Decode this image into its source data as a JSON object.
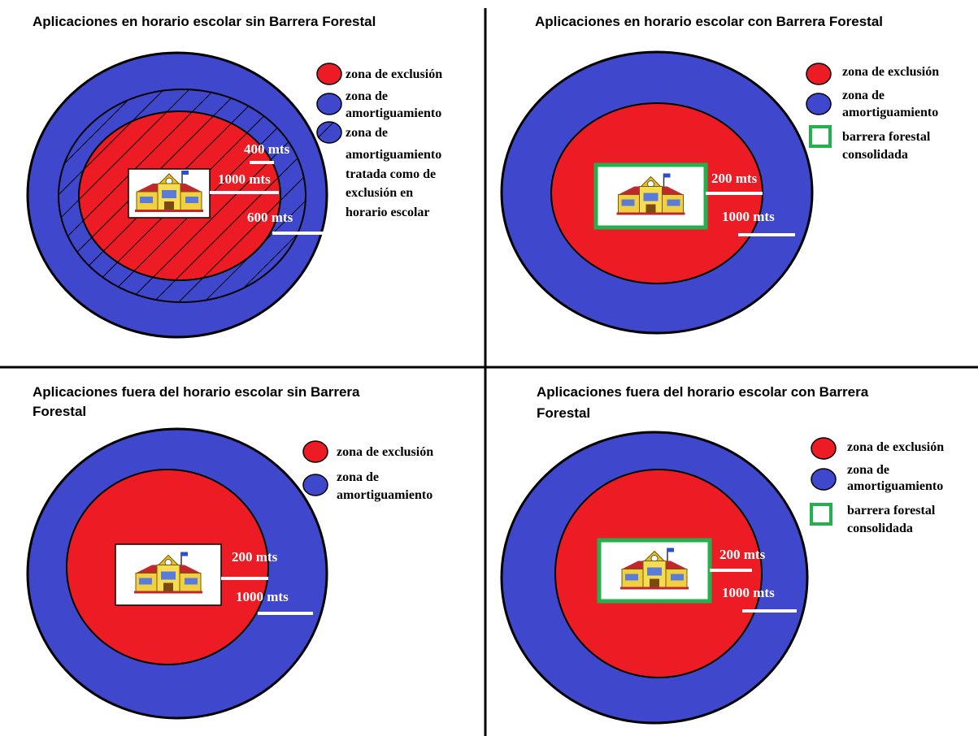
{
  "panels": [
    {
      "title": [
        "Aplicaciones en horario escolar sin Barrera Forestal"
      ],
      "legend": [
        {
          "label": [
            "zona de exclusión"
          ]
        },
        {
          "label": [
            "zona de",
            "amortiguamiento"
          ]
        },
        {
          "label": [
            "zona de",
            "amortiguamiento",
            "tratada como de",
            "exclusión en",
            "horario escolar"
          ]
        }
      ],
      "distances": [
        "400 mts",
        "1000 mts",
        "600 mts"
      ]
    },
    {
      "title": [
        "Aplicaciones en horario escolar con Barrera Forestal"
      ],
      "legend": [
        {
          "label": [
            "zona de exclusión"
          ]
        },
        {
          "label": [
            "zona de",
            "amortiguamiento"
          ]
        },
        {
          "label": [
            "barrera forestal",
            "consolidada"
          ]
        }
      ],
      "distances": [
        "200 mts",
        "1000 mts"
      ]
    },
    {
      "title": [
        "Aplicaciones fuera del horario escolar sin Barrera",
        "Forestal"
      ],
      "legend": [
        {
          "label": [
            "zona de exclusión"
          ]
        },
        {
          "label": [
            "zona de",
            "amortiguamiento"
          ]
        }
      ],
      "distances": [
        "200 mts",
        "1000 mts"
      ]
    },
    {
      "title": [
        "Aplicaciones fuera del horario escolar con Barrera",
        "Forestal"
      ],
      "legend": [
        {
          "label": [
            "zona de exclusión"
          ]
        },
        {
          "label": [
            "zona de",
            "amortiguamiento"
          ]
        },
        {
          "label": [
            "barrera forestal",
            "consolidada"
          ]
        }
      ],
      "distances": [
        "200 mts",
        "1000 mts"
      ]
    }
  ]
}
